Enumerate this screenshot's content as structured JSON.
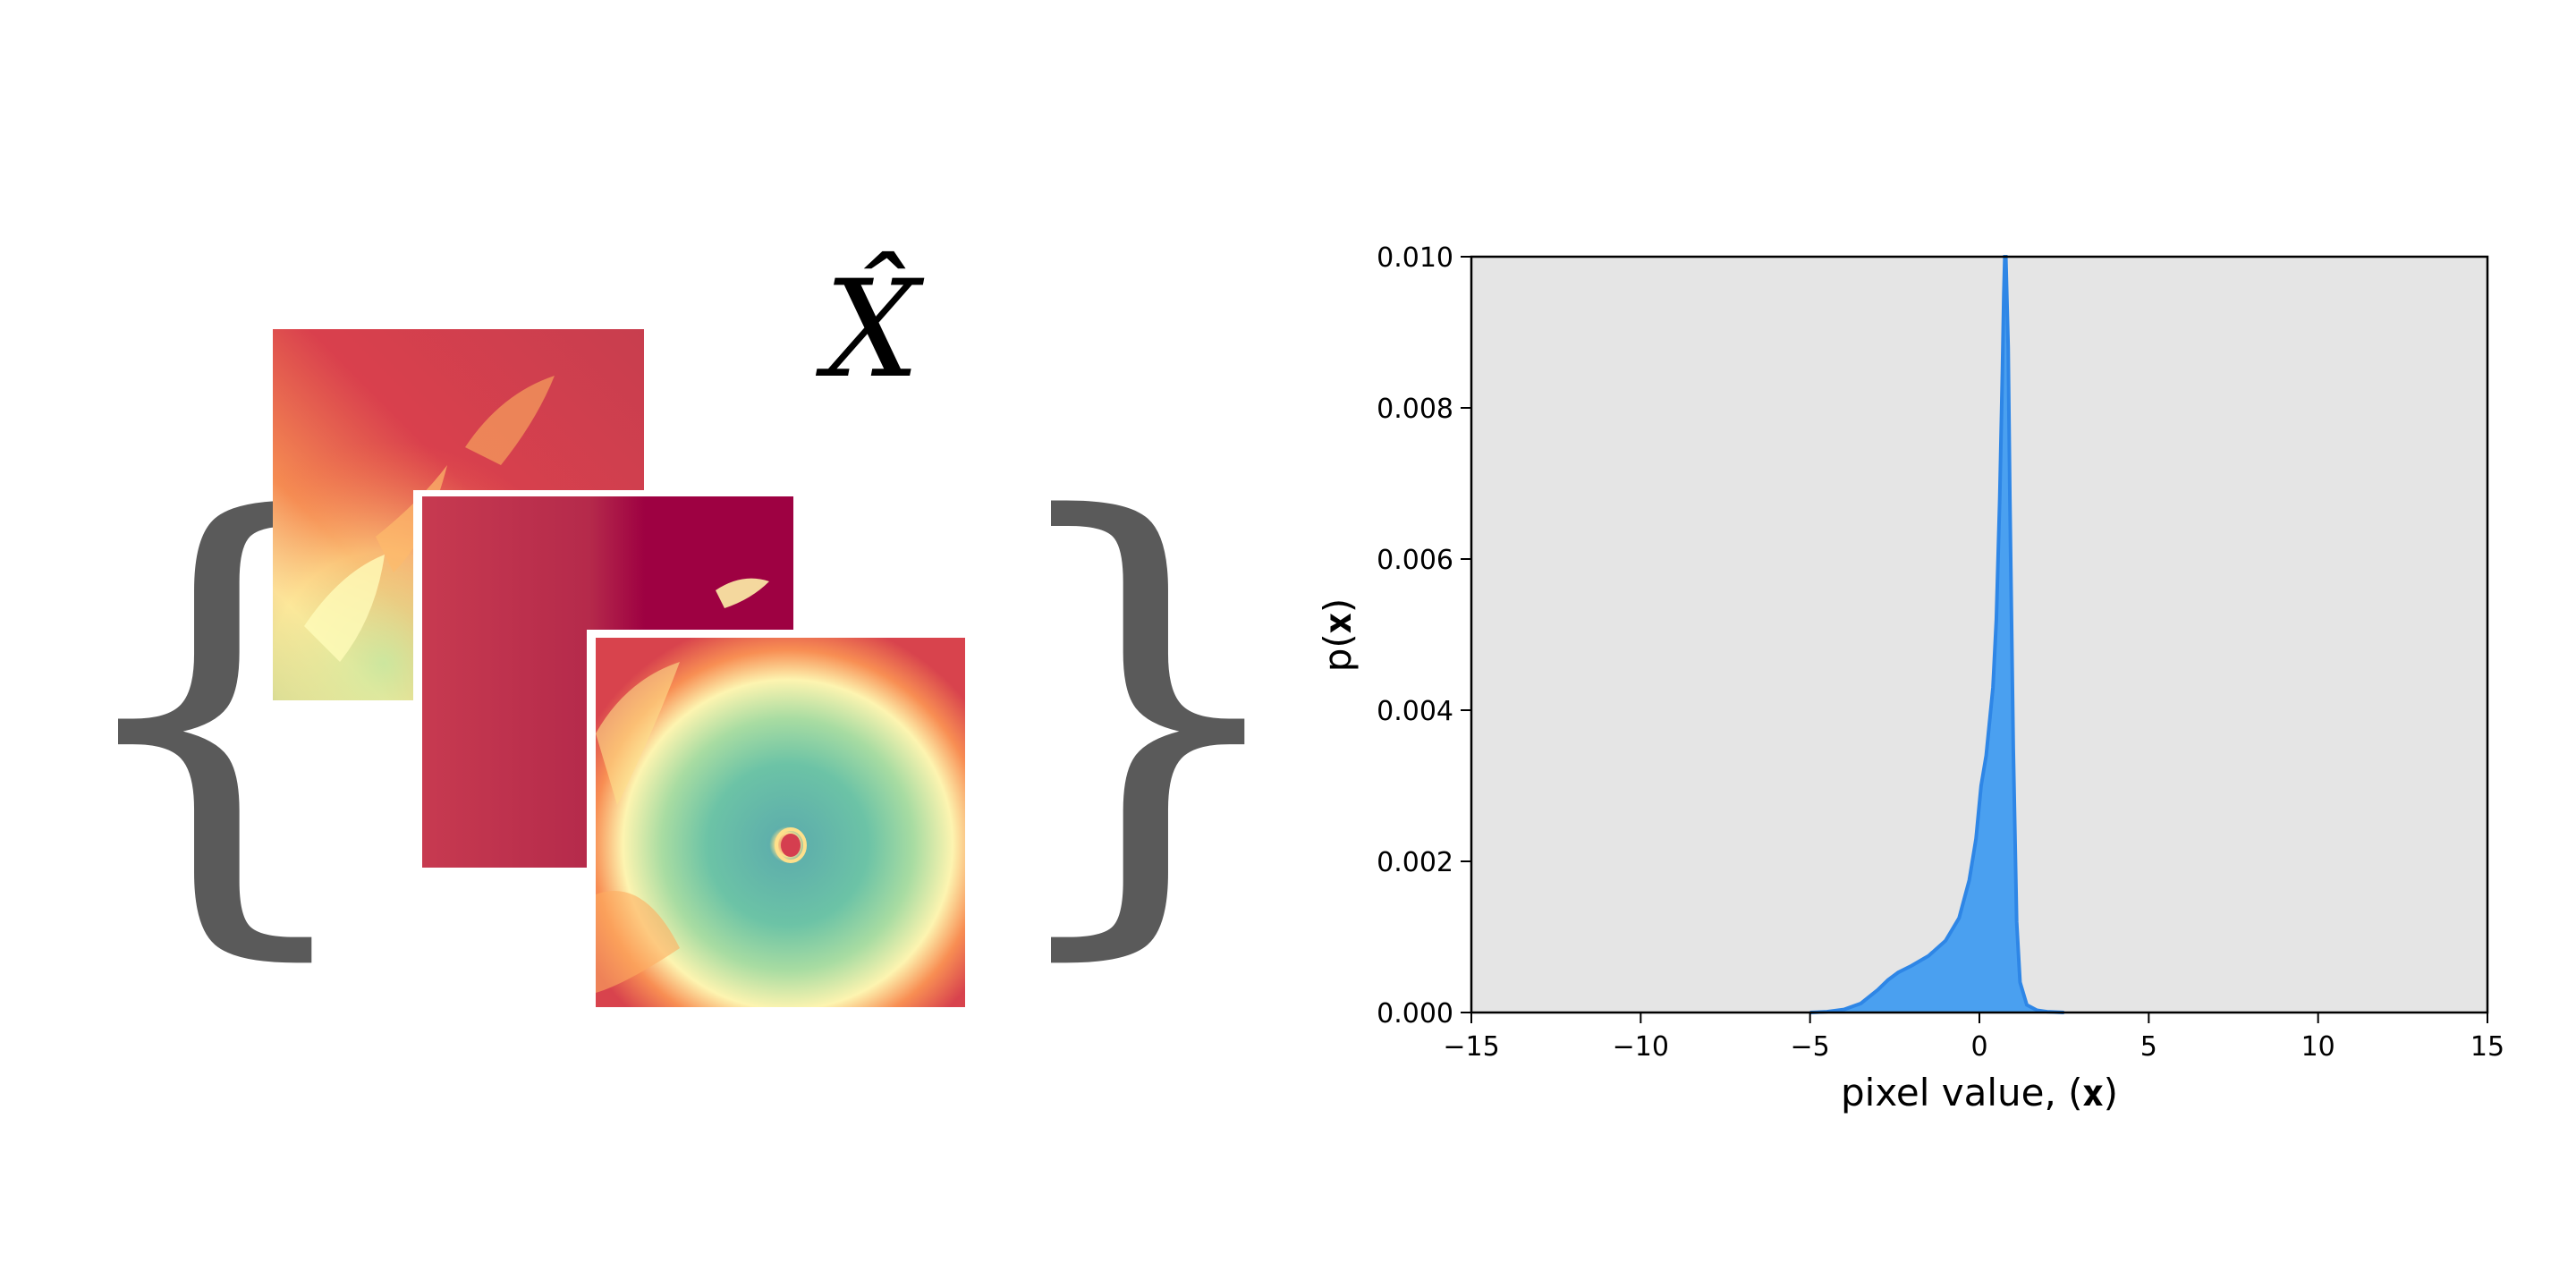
{
  "left_panel": {
    "symbol_label": "X̂",
    "open_brace": "{",
    "close_brace": "}",
    "images": [
      {
        "name": "satellite-image-1",
        "colormap": "Spectral"
      },
      {
        "name": "satellite-image-2",
        "colormap": "Spectral"
      },
      {
        "name": "hurricane-image",
        "colormap": "Spectral"
      }
    ]
  },
  "chart_data": {
    "type": "area",
    "title": "",
    "xlabel": "pixel value, (𝐱)",
    "ylabel": "p(𝐱)",
    "xlim": [
      -15,
      15
    ],
    "ylim": [
      0,
      0.01
    ],
    "xticks": [
      -15,
      -10,
      -5,
      0,
      5,
      10,
      15
    ],
    "xtick_labels": [
      "−15",
      "−10",
      "−5",
      "0",
      "5",
      "10",
      "15"
    ],
    "yticks": [
      0,
      0.002,
      0.004,
      0.006,
      0.008,
      0.01
    ],
    "ytick_labels": [
      "0.000",
      "0.002",
      "0.004",
      "0.006",
      "0.008",
      "0.010"
    ],
    "grid": false,
    "background": "#e5e5e5",
    "fill_color": "#4aa0f0",
    "line_color": "#2e86e6",
    "series": [
      {
        "x": [
          -5,
          -4.5,
          -4.0,
          -3.5,
          -3.0,
          -2.7,
          -2.4,
          -2.0,
          -1.5,
          -1.0,
          -0.6,
          -0.3,
          -0.1,
          0.05,
          0.2,
          0.4,
          0.5,
          0.6,
          0.68,
          0.72,
          0.75,
          0.78,
          0.85,
          0.9,
          1.0,
          1.1,
          1.2,
          1.4,
          1.7,
          2.0,
          2.5
        ],
        "y": [
          0,
          1e-05,
          4e-05,
          0.00012,
          0.0003,
          0.00043,
          0.00053,
          0.00062,
          0.00075,
          0.00095,
          0.00125,
          0.00175,
          0.0023,
          0.003,
          0.0034,
          0.0043,
          0.0052,
          0.0068,
          0.0085,
          0.0095,
          0.0103,
          0.0103,
          0.0088,
          0.0068,
          0.0035,
          0.0012,
          0.0004,
          0.0001,
          3e-05,
          1e-05,
          0
        ]
      }
    ]
  }
}
